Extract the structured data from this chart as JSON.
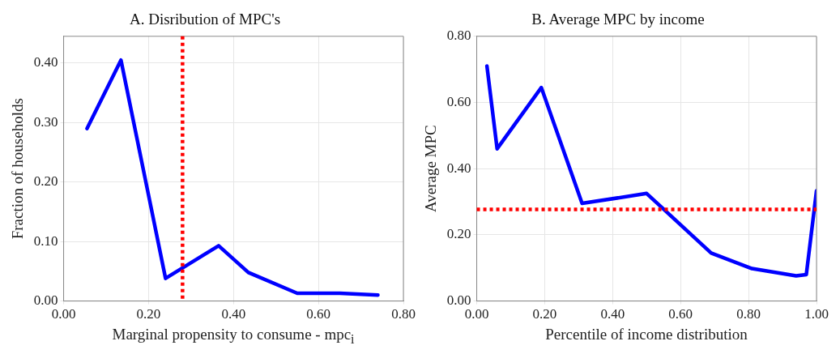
{
  "chart_data": [
    {
      "type": "line",
      "title": "A. Disribution of MPC's",
      "xlabel": "Marginal propensity to consume - mpc$_{i}$",
      "ylabel": "Fraction of households",
      "x": [
        0.055,
        0.135,
        0.24,
        0.365,
        0.435,
        0.55,
        0.65,
        0.74
      ],
      "series": [
        {
          "color": "#0000ff",
          "values": [
            0.29,
            0.405,
            0.038,
            0.093,
            0.048,
            0.013,
            0.013,
            0.01
          ]
        }
      ],
      "xlim": [
        0,
        0.8
      ],
      "xticks": [
        {
          "value": 0,
          "label": "0.00"
        },
        {
          "value": 0.2,
          "label": "0.20"
        },
        {
          "value": 0.4,
          "label": "0.40"
        },
        {
          "value": 0.6,
          "label": "0.60"
        },
        {
          "value": 0.8,
          "label": "0.80"
        }
      ],
      "ylim": [
        0,
        0.445
      ],
      "yticks": [
        {
          "value": 0,
          "label": "0.00"
        },
        {
          "value": 0.1,
          "label": "0.10"
        },
        {
          "value": 0.2,
          "label": "0.20"
        },
        {
          "value": 0.3,
          "label": "0.30"
        },
        {
          "value": 0.4,
          "label": "0.40"
        }
      ],
      "ref_lines": [
        {
          "axis": "x",
          "value": 0.28,
          "color": "#ff0000",
          "line_style": "dotted"
        }
      ],
      "grid": true,
      "legend": false,
      "marker": "none",
      "line_style": "solid"
    },
    {
      "type": "line",
      "title": "B. Average MPC by income",
      "xlabel": "Percentile of income distribution",
      "ylabel": "Average MPC",
      "x": [
        0.03,
        0.06,
        0.19,
        0.31,
        0.5,
        0.69,
        0.81,
        0.94,
        0.97,
        1.0
      ],
      "series": [
        {
          "color": "#0000ff",
          "values": [
            0.71,
            0.46,
            0.645,
            0.295,
            0.325,
            0.145,
            0.098,
            0.076,
            0.08,
            0.333
          ]
        }
      ],
      "xlim": [
        0,
        1
      ],
      "xticks": [
        {
          "value": 0,
          "label": "0.00"
        },
        {
          "value": 0.2,
          "label": "0.20"
        },
        {
          "value": 0.4,
          "label": "0.40"
        },
        {
          "value": 0.6,
          "label": "0.60"
        },
        {
          "value": 0.8,
          "label": "0.80"
        },
        {
          "value": 1,
          "label": "1.00"
        }
      ],
      "ylim": [
        0,
        0.8
      ],
      "yticks": [
        {
          "value": 0,
          "label": "0.00"
        },
        {
          "value": 0.2,
          "label": "0.20"
        },
        {
          "value": 0.4,
          "label": "0.40"
        },
        {
          "value": 0.6,
          "label": "0.60"
        },
        {
          "value": 0.8,
          "label": "0.80"
        }
      ],
      "ref_lines": [
        {
          "axis": "y",
          "value": 0.277,
          "color": "#ff0000",
          "line_style": "dotted"
        }
      ],
      "grid": true,
      "legend": false,
      "marker": "none",
      "line_style": "solid"
    }
  ]
}
